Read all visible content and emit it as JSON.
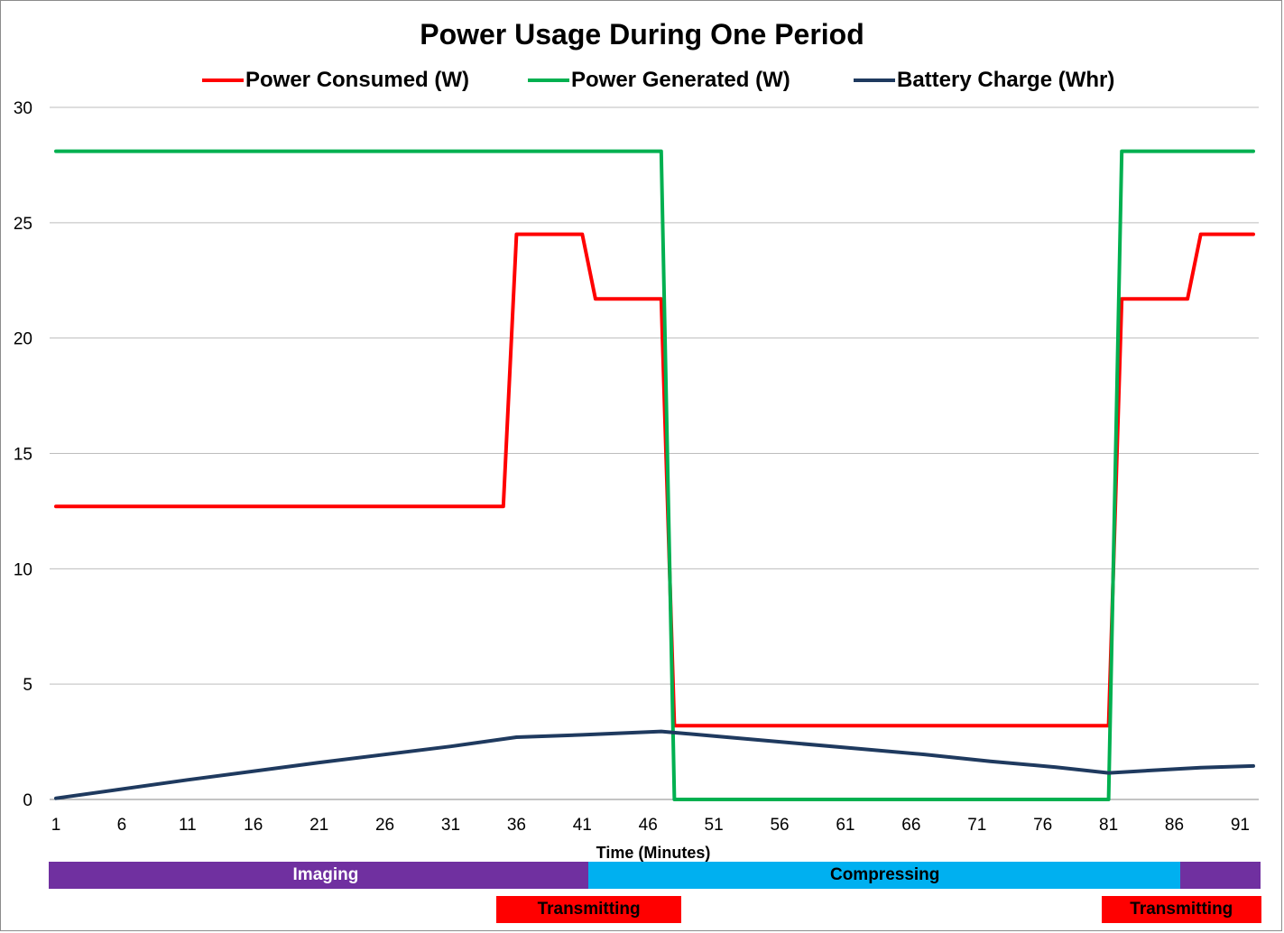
{
  "chart_data": {
    "type": "line",
    "title": "Power Usage During One Period",
    "xlabel": "Time  (Minutes)",
    "ylabel": "",
    "ylim": [
      0,
      30
    ],
    "xlim": [
      1,
      92
    ],
    "y_ticks": [
      "0",
      "5",
      "10",
      "15",
      "20",
      "25",
      "30"
    ],
    "x_ticks": [
      "1",
      "6",
      "11",
      "16",
      "21",
      "26",
      "31",
      "36",
      "41",
      "46",
      "51",
      "56",
      "61",
      "66",
      "71",
      "76",
      "81",
      "86",
      "91"
    ],
    "grid": "horizontal",
    "legend_position": "top",
    "series": [
      {
        "name": "Power Consumed (W)",
        "color": "#ff0000",
        "points": [
          [
            1,
            12.7
          ],
          [
            35,
            12.7
          ],
          [
            36,
            24.5
          ],
          [
            41,
            24.5
          ],
          [
            42,
            21.7
          ],
          [
            47,
            21.7
          ],
          [
            48,
            3.2
          ],
          [
            81,
            3.2
          ],
          [
            82,
            21.7
          ],
          [
            87,
            21.7
          ],
          [
            88,
            24.5
          ],
          [
            92,
            24.5
          ]
        ]
      },
      {
        "name": "Power Generated (W)",
        "color": "#00b050",
        "points": [
          [
            1,
            28.1
          ],
          [
            47,
            28.1
          ],
          [
            48,
            0
          ],
          [
            81,
            0
          ],
          [
            82,
            28.1
          ],
          [
            92,
            28.1
          ]
        ]
      },
      {
        "name": "Battery Charge (Whr)",
        "color": "#1f3a5f",
        "points": [
          [
            1,
            0.05
          ],
          [
            11,
            0.85
          ],
          [
            21,
            1.6
          ],
          [
            31,
            2.3
          ],
          [
            36,
            2.7
          ],
          [
            41,
            2.8
          ],
          [
            47,
            2.95
          ],
          [
            52,
            2.7
          ],
          [
            57,
            2.45
          ],
          [
            62,
            2.2
          ],
          [
            67,
            1.95
          ],
          [
            72,
            1.65
          ],
          [
            77,
            1.4
          ],
          [
            81,
            1.15
          ],
          [
            84,
            1.25
          ],
          [
            88,
            1.38
          ],
          [
            92,
            1.45
          ]
        ]
      }
    ]
  },
  "phases": {
    "row1": [
      {
        "label": "Imaging",
        "start": 1,
        "end": 42,
        "color": "#7030a0",
        "text_color": "#ffffff"
      },
      {
        "label": "Compressing",
        "start": 42,
        "end": 86,
        "color": "#00b0f0",
        "text_color": "#000000"
      },
      {
        "label": "",
        "start": 87,
        "end": 92,
        "color": "#7030a0",
        "text_color": "#ffffff"
      }
    ],
    "row2": [
      {
        "label": "Transmitting",
        "start": 35,
        "end": 48,
        "color": "#ff0000",
        "text_color": "#000000"
      },
      {
        "label": "Transmitting",
        "start": 81,
        "end": 93,
        "color": "#ff0000",
        "text_color": "#000000"
      }
    ]
  }
}
